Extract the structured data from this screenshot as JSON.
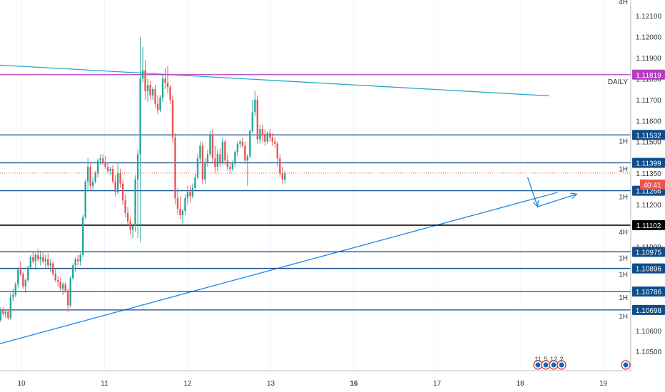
{
  "chart_data": {
    "type": "candlestick",
    "ylim": [
      1.105,
      1.122
    ],
    "y_ticks": [
      "1.12100",
      "1.12000",
      "1.11900",
      "1.11800",
      "1.11700",
      "1.11600",
      "1.11500",
      "1.11200",
      "1.11000",
      "1.10600",
      "1.10500"
    ],
    "x_ticks": [
      {
        "label": "10",
        "t": 0
      },
      {
        "label": "11",
        "t": 1
      },
      {
        "label": "12",
        "t": 2
      },
      {
        "label": "13",
        "t": 3
      },
      {
        "label": "16",
        "t": 4,
        "bold": true
      },
      {
        "label": "17",
        "t": 5
      },
      {
        "label": "18",
        "t": 6
      },
      {
        "label": "19",
        "t": 7
      }
    ],
    "levels": [
      {
        "value": 1.11819,
        "label": "1.11819",
        "color": "#b43fbf",
        "tf": "DAILY",
        "tf_color": "#26a6c8"
      },
      {
        "value": 1.11532,
        "label": "1.11532",
        "color": "#0d4d8c",
        "tf": "1H"
      },
      {
        "value": 1.11399,
        "label": "1.11399",
        "color": "#0d4d8c",
        "tf": "1H"
      },
      {
        "value": 1.11266,
        "label": "1.11266",
        "color": "#0d4d8c",
        "tf": "1H"
      },
      {
        "value": 1.11102,
        "label": "1.11102",
        "color": "#000000",
        "tf": "4H",
        "tf_color": "#e8d44d"
      },
      {
        "value": 1.10975,
        "label": "1.10975",
        "color": "#0d4d8c",
        "tf": "1H"
      },
      {
        "value": 1.10896,
        "label": "1.10896",
        "color": "#0d4d8c",
        "tf": "1H"
      },
      {
        "value": 1.10786,
        "label": "1.10786",
        "color": "#0d4d8c",
        "tf": "1H"
      },
      {
        "value": 1.10698,
        "label": "1.10698",
        "color": "#0d4d8c",
        "tf": "1H"
      }
    ],
    "top_tf": {
      "label": "4H",
      "color": "#e8d44d"
    },
    "current_price": {
      "value": 1.1135,
      "label": "1.11350",
      "color": "#ef5350"
    },
    "countdown": {
      "label": "40:41",
      "color": "#ef5350"
    },
    "trendlines": [
      {
        "from": [
          -0.28,
          1.11865
        ],
        "to": [
          6.35,
          1.11718
        ],
        "color": "#26a6c8"
      },
      {
        "from": [
          -0.28,
          1.10535
        ],
        "to": [
          6.45,
          1.11258
        ],
        "color": "#1e88e5"
      }
    ],
    "arrow_path": [
      [
        6.09,
        1.1133
      ],
      [
        6.21,
        1.1119
      ],
      [
        6.68,
        1.1125
      ]
    ],
    "arrow_color": "#1e88e5",
    "events": [
      {
        "label": "11"
      },
      {
        "label": "5"
      },
      {
        "label": "12"
      },
      {
        "label": "2"
      }
    ],
    "up_color": "#26a69a",
    "down_color": "#ef5350",
    "candles": [
      [
        -0.28,
        1.1066,
        1.1068,
        1.1063,
        1.1065
      ],
      [
        -0.25,
        1.1065,
        1.1071,
        1.1064,
        1.107
      ],
      [
        -0.22,
        1.107,
        1.1071,
        1.1067,
        1.1068
      ],
      [
        -0.19,
        1.1068,
        1.107,
        1.1066,
        1.1069
      ],
      [
        -0.16,
        1.1069,
        1.107,
        1.1065,
        1.1066
      ],
      [
        -0.13,
        1.1066,
        1.1078,
        1.1065,
        1.1076
      ],
      [
        -0.1,
        1.1076,
        1.108,
        1.1074,
        1.1077
      ],
      [
        -0.07,
        1.1077,
        1.1083,
        1.1076,
        1.1082
      ],
      [
        -0.04,
        1.1082,
        1.109,
        1.108,
        1.1089
      ],
      [
        -0.01,
        1.1089,
        1.1093,
        1.1086,
        1.1087
      ],
      [
        0.02,
        1.1087,
        1.1088,
        1.108,
        1.1081
      ],
      [
        0.05,
        1.1081,
        1.1085,
        1.1078,
        1.1084
      ],
      [
        0.08,
        1.1084,
        1.1091,
        1.1083,
        1.109
      ],
      [
        0.11,
        1.109,
        1.1096,
        1.1089,
        1.1095
      ],
      [
        0.14,
        1.1095,
        1.1098,
        1.1092,
        1.1093
      ],
      [
        0.17,
        1.1093,
        1.1097,
        1.1089,
        1.1096
      ],
      [
        0.2,
        1.1096,
        1.1099,
        1.1093,
        1.1094
      ],
      [
        0.23,
        1.1094,
        1.1098,
        1.1091,
        1.1095
      ],
      [
        0.26,
        1.1095,
        1.1097,
        1.1092,
        1.1093
      ],
      [
        0.29,
        1.1093,
        1.1096,
        1.109,
        1.1094
      ],
      [
        0.32,
        1.1094,
        1.1097,
        1.109,
        1.1091
      ],
      [
        0.35,
        1.1091,
        1.1094,
        1.1088,
        1.1092
      ],
      [
        0.38,
        1.1092,
        1.1093,
        1.1086,
        1.1087
      ],
      [
        0.41,
        1.1087,
        1.1089,
        1.1083,
        1.1084
      ],
      [
        0.44,
        1.1084,
        1.1086,
        1.1081,
        1.1083
      ],
      [
        0.47,
        1.1083,
        1.1085,
        1.1079,
        1.108
      ],
      [
        0.5,
        1.108,
        1.1083,
        1.1077,
        1.1082
      ],
      [
        0.53,
        1.1082,
        1.1083,
        1.1078,
        1.1079
      ],
      [
        0.56,
        1.1079,
        1.108,
        1.1069,
        1.1072
      ],
      [
        0.59,
        1.1072,
        1.1086,
        1.1071,
        1.1085
      ],
      [
        0.62,
        1.1085,
        1.1092,
        1.1084,
        1.1091
      ],
      [
        0.65,
        1.1091,
        1.1095,
        1.1088,
        1.1094
      ],
      [
        0.68,
        1.1094,
        1.1096,
        1.1091,
        1.1093
      ],
      [
        0.71,
        1.1093,
        1.1097,
        1.1091,
        1.1096
      ],
      [
        0.74,
        1.1096,
        1.1115,
        1.1095,
        1.1114
      ],
      [
        0.77,
        1.1114,
        1.1132,
        1.1113,
        1.1131
      ],
      [
        0.8,
        1.1131,
        1.1142,
        1.1127,
        1.1138
      ],
      [
        0.83,
        1.1138,
        1.114,
        1.1127,
        1.1129
      ],
      [
        0.86,
        1.1129,
        1.1133,
        1.1127,
        1.1131
      ],
      [
        0.89,
        1.1131,
        1.1136,
        1.113,
        1.1135
      ],
      [
        0.92,
        1.1135,
        1.1142,
        1.1133,
        1.1141
      ],
      [
        0.95,
        1.1141,
        1.1144,
        1.1139,
        1.1142
      ],
      [
        0.98,
        1.1142,
        1.1144,
        1.1139,
        1.114
      ],
      [
        1.01,
        1.114,
        1.1143,
        1.1137,
        1.1138
      ],
      [
        1.04,
        1.1138,
        1.114,
        1.1135,
        1.1136
      ],
      [
        1.07,
        1.1136,
        1.1138,
        1.1134,
        1.1137
      ],
      [
        1.1,
        1.1137,
        1.1139,
        1.113,
        1.1131
      ],
      [
        1.13,
        1.1131,
        1.1134,
        1.1124,
        1.1126
      ],
      [
        1.16,
        1.1126,
        1.114,
        1.1125,
        1.1135
      ],
      [
        1.19,
        1.1135,
        1.1137,
        1.1128,
        1.113
      ],
      [
        1.22,
        1.113,
        1.1132,
        1.112,
        1.1122
      ],
      [
        1.25,
        1.1122,
        1.1125,
        1.1114,
        1.1116
      ],
      [
        1.28,
        1.1116,
        1.1119,
        1.111,
        1.1112
      ],
      [
        1.31,
        1.1112,
        1.1114,
        1.1106,
        1.1108
      ],
      [
        1.34,
        1.1108,
        1.1111,
        1.1104,
        1.111
      ],
      [
        1.37,
        1.111,
        1.1134,
        1.1107,
        1.1132
      ],
      [
        1.4,
        1.1132,
        1.1146,
        1.1104,
        1.1144
      ],
      [
        1.43,
        1.1144,
        1.12,
        1.1102,
        1.118
      ],
      [
        1.46,
        1.118,
        1.1195,
        1.1178,
        1.1184
      ],
      [
        1.49,
        1.1184,
        1.1189,
        1.117,
        1.1174
      ],
      [
        1.52,
        1.1174,
        1.118,
        1.1169,
        1.1177
      ],
      [
        1.55,
        1.1177,
        1.1179,
        1.117,
        1.1172
      ],
      [
        1.58,
        1.1172,
        1.1176,
        1.117,
        1.1175
      ],
      [
        1.61,
        1.1175,
        1.1177,
        1.1166,
        1.1168
      ],
      [
        1.64,
        1.1168,
        1.1172,
        1.1163,
        1.1165
      ],
      [
        1.67,
        1.1165,
        1.1172,
        1.1164,
        1.1171
      ],
      [
        1.7,
        1.1171,
        1.1182,
        1.1169,
        1.118
      ],
      [
        1.73,
        1.118,
        1.1185,
        1.1175,
        1.1178
      ],
      [
        1.76,
        1.1178,
        1.1186,
        1.1173,
        1.1176
      ],
      [
        1.79,
        1.1176,
        1.1177,
        1.1168,
        1.117
      ],
      [
        1.82,
        1.117,
        1.1172,
        1.115,
        1.1152
      ],
      [
        1.85,
        1.1152,
        1.1154,
        1.112,
        1.1123
      ],
      [
        1.88,
        1.1123,
        1.1128,
        1.1115,
        1.1118
      ],
      [
        1.91,
        1.1118,
        1.1124,
        1.1113,
        1.1115
      ],
      [
        1.94,
        1.1115,
        1.1118,
        1.1111,
        1.1117
      ],
      [
        1.97,
        1.1117,
        1.1125,
        1.1115,
        1.1123
      ],
      [
        2.0,
        1.1123,
        1.1129,
        1.112,
        1.1126
      ],
      [
        2.03,
        1.1126,
        1.1129,
        1.1121,
        1.1124
      ],
      [
        2.06,
        1.1124,
        1.113,
        1.1123,
        1.1128
      ],
      [
        2.09,
        1.1128,
        1.1135,
        1.1127,
        1.1133
      ],
      [
        2.12,
        1.1133,
        1.1144,
        1.1132,
        1.1142
      ],
      [
        2.15,
        1.1142,
        1.115,
        1.114,
        1.1148
      ],
      [
        2.18,
        1.1148,
        1.115,
        1.113,
        1.1132
      ],
      [
        2.21,
        1.1132,
        1.1142,
        1.113,
        1.114
      ],
      [
        2.24,
        1.114,
        1.1146,
        1.1138,
        1.1144
      ],
      [
        2.27,
        1.1144,
        1.1155,
        1.1143,
        1.1153
      ],
      [
        2.3,
        1.1153,
        1.1156,
        1.114,
        1.1142
      ],
      [
        2.33,
        1.1142,
        1.1148,
        1.1135,
        1.1138
      ],
      [
        2.36,
        1.1138,
        1.1146,
        1.1136,
        1.1144
      ],
      [
        2.39,
        1.1144,
        1.1147,
        1.1138,
        1.114
      ],
      [
        2.42,
        1.114,
        1.1152,
        1.1139,
        1.115
      ],
      [
        2.45,
        1.115,
        1.1151,
        1.1139,
        1.1141
      ],
      [
        2.48,
        1.1141,
        1.1144,
        1.1136,
        1.1138
      ],
      [
        2.51,
        1.1138,
        1.114,
        1.1135,
        1.1137
      ],
      [
        2.54,
        1.1137,
        1.1141,
        1.1136,
        1.114
      ],
      [
        2.57,
        1.114,
        1.1146,
        1.1138,
        1.1145
      ],
      [
        2.6,
        1.1145,
        1.115,
        1.1143,
        1.1149
      ],
      [
        2.63,
        1.1149,
        1.1151,
        1.1147,
        1.115
      ],
      [
        2.66,
        1.115,
        1.1152,
        1.1147,
        1.1148
      ],
      [
        2.69,
        1.1148,
        1.115,
        1.114,
        1.1141
      ],
      [
        2.72,
        1.1141,
        1.1144,
        1.1129,
        1.1143
      ],
      [
        2.75,
        1.1143,
        1.1156,
        1.1142,
        1.1155
      ],
      [
        2.78,
        1.1155,
        1.117,
        1.1154,
        1.1164
      ],
      [
        2.81,
        1.1164,
        1.1174,
        1.1162,
        1.117
      ],
      [
        2.84,
        1.117,
        1.1172,
        1.1149,
        1.1151
      ],
      [
        2.87,
        1.1151,
        1.1158,
        1.1149,
        1.1156
      ],
      [
        2.9,
        1.1156,
        1.1158,
        1.115,
        1.1153
      ],
      [
        2.93,
        1.1153,
        1.1156,
        1.1148,
        1.115
      ],
      [
        2.96,
        1.115,
        1.1155,
        1.1149,
        1.1154
      ],
      [
        2.99,
        1.1154,
        1.1156,
        1.115,
        1.1152
      ],
      [
        3.02,
        1.1152,
        1.1154,
        1.1148,
        1.115
      ],
      [
        3.05,
        1.115,
        1.1152,
        1.1147,
        1.1149
      ],
      [
        3.08,
        1.1149,
        1.115,
        1.1138,
        1.1142
      ],
      [
        3.11,
        1.1142,
        1.1144,
        1.1133,
        1.1135
      ],
      [
        3.14,
        1.1135,
        1.1138,
        1.113,
        1.1132
      ],
      [
        3.17,
        1.1132,
        1.1136,
        1.113,
        1.1135
      ]
    ]
  }
}
